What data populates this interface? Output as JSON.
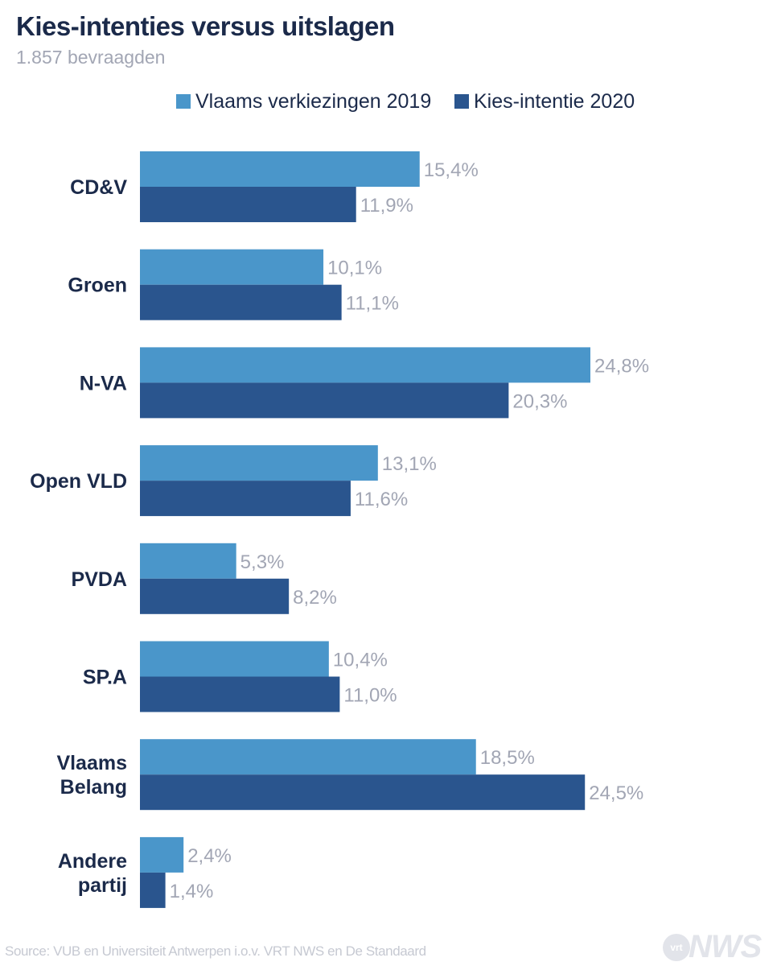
{
  "chart_data": {
    "type": "bar",
    "orientation": "horizontal",
    "title": "Kies-intenties versus uitslagen",
    "subtitle": "1.857 bevraagden",
    "categories": [
      [
        "CD&V"
      ],
      [
        "Groen"
      ],
      [
        "N-VA"
      ],
      [
        "Open VLD"
      ],
      [
        "PVDA"
      ],
      [
        "SP.A"
      ],
      [
        "Vlaams",
        "Belang"
      ],
      [
        "Andere",
        "partij"
      ]
    ],
    "series": [
      {
        "name": "Vlaams verkiezingen 2019",
        "color": "#4a96ca",
        "values": [
          15.4,
          10.1,
          24.8,
          13.1,
          5.3,
          10.4,
          18.5,
          2.4
        ],
        "labels": [
          "15,4%",
          "10,1%",
          "24,8%",
          "13,1%",
          "5,3%",
          "10,4%",
          "18,5%",
          "2,4%"
        ]
      },
      {
        "name": "Kies-intentie 2020",
        "color": "#2a558e",
        "values": [
          11.9,
          11.1,
          20.3,
          11.6,
          8.2,
          11.0,
          24.5,
          1.4
        ],
        "labels": [
          "11,9%",
          "11,1%",
          "20,3%",
          "11,6%",
          "8,2%",
          "11,0%",
          "24,5%",
          "1,4%"
        ]
      }
    ],
    "legend_position": "top",
    "grid": false,
    "xlim": [
      0,
      25
    ],
    "xlabel": "",
    "ylabel": ""
  },
  "colors": {
    "title": "#1b2a4a",
    "category_label": "#1b2a4a",
    "value_label": "#a2a6b4",
    "source": "#c6c9d2"
  },
  "source_text": "Source: VUB en Universiteit Antwerpen i.o.v. VRT NWS en De Standaard",
  "logo": {
    "circle_text": "vrt",
    "text": "NWS"
  }
}
